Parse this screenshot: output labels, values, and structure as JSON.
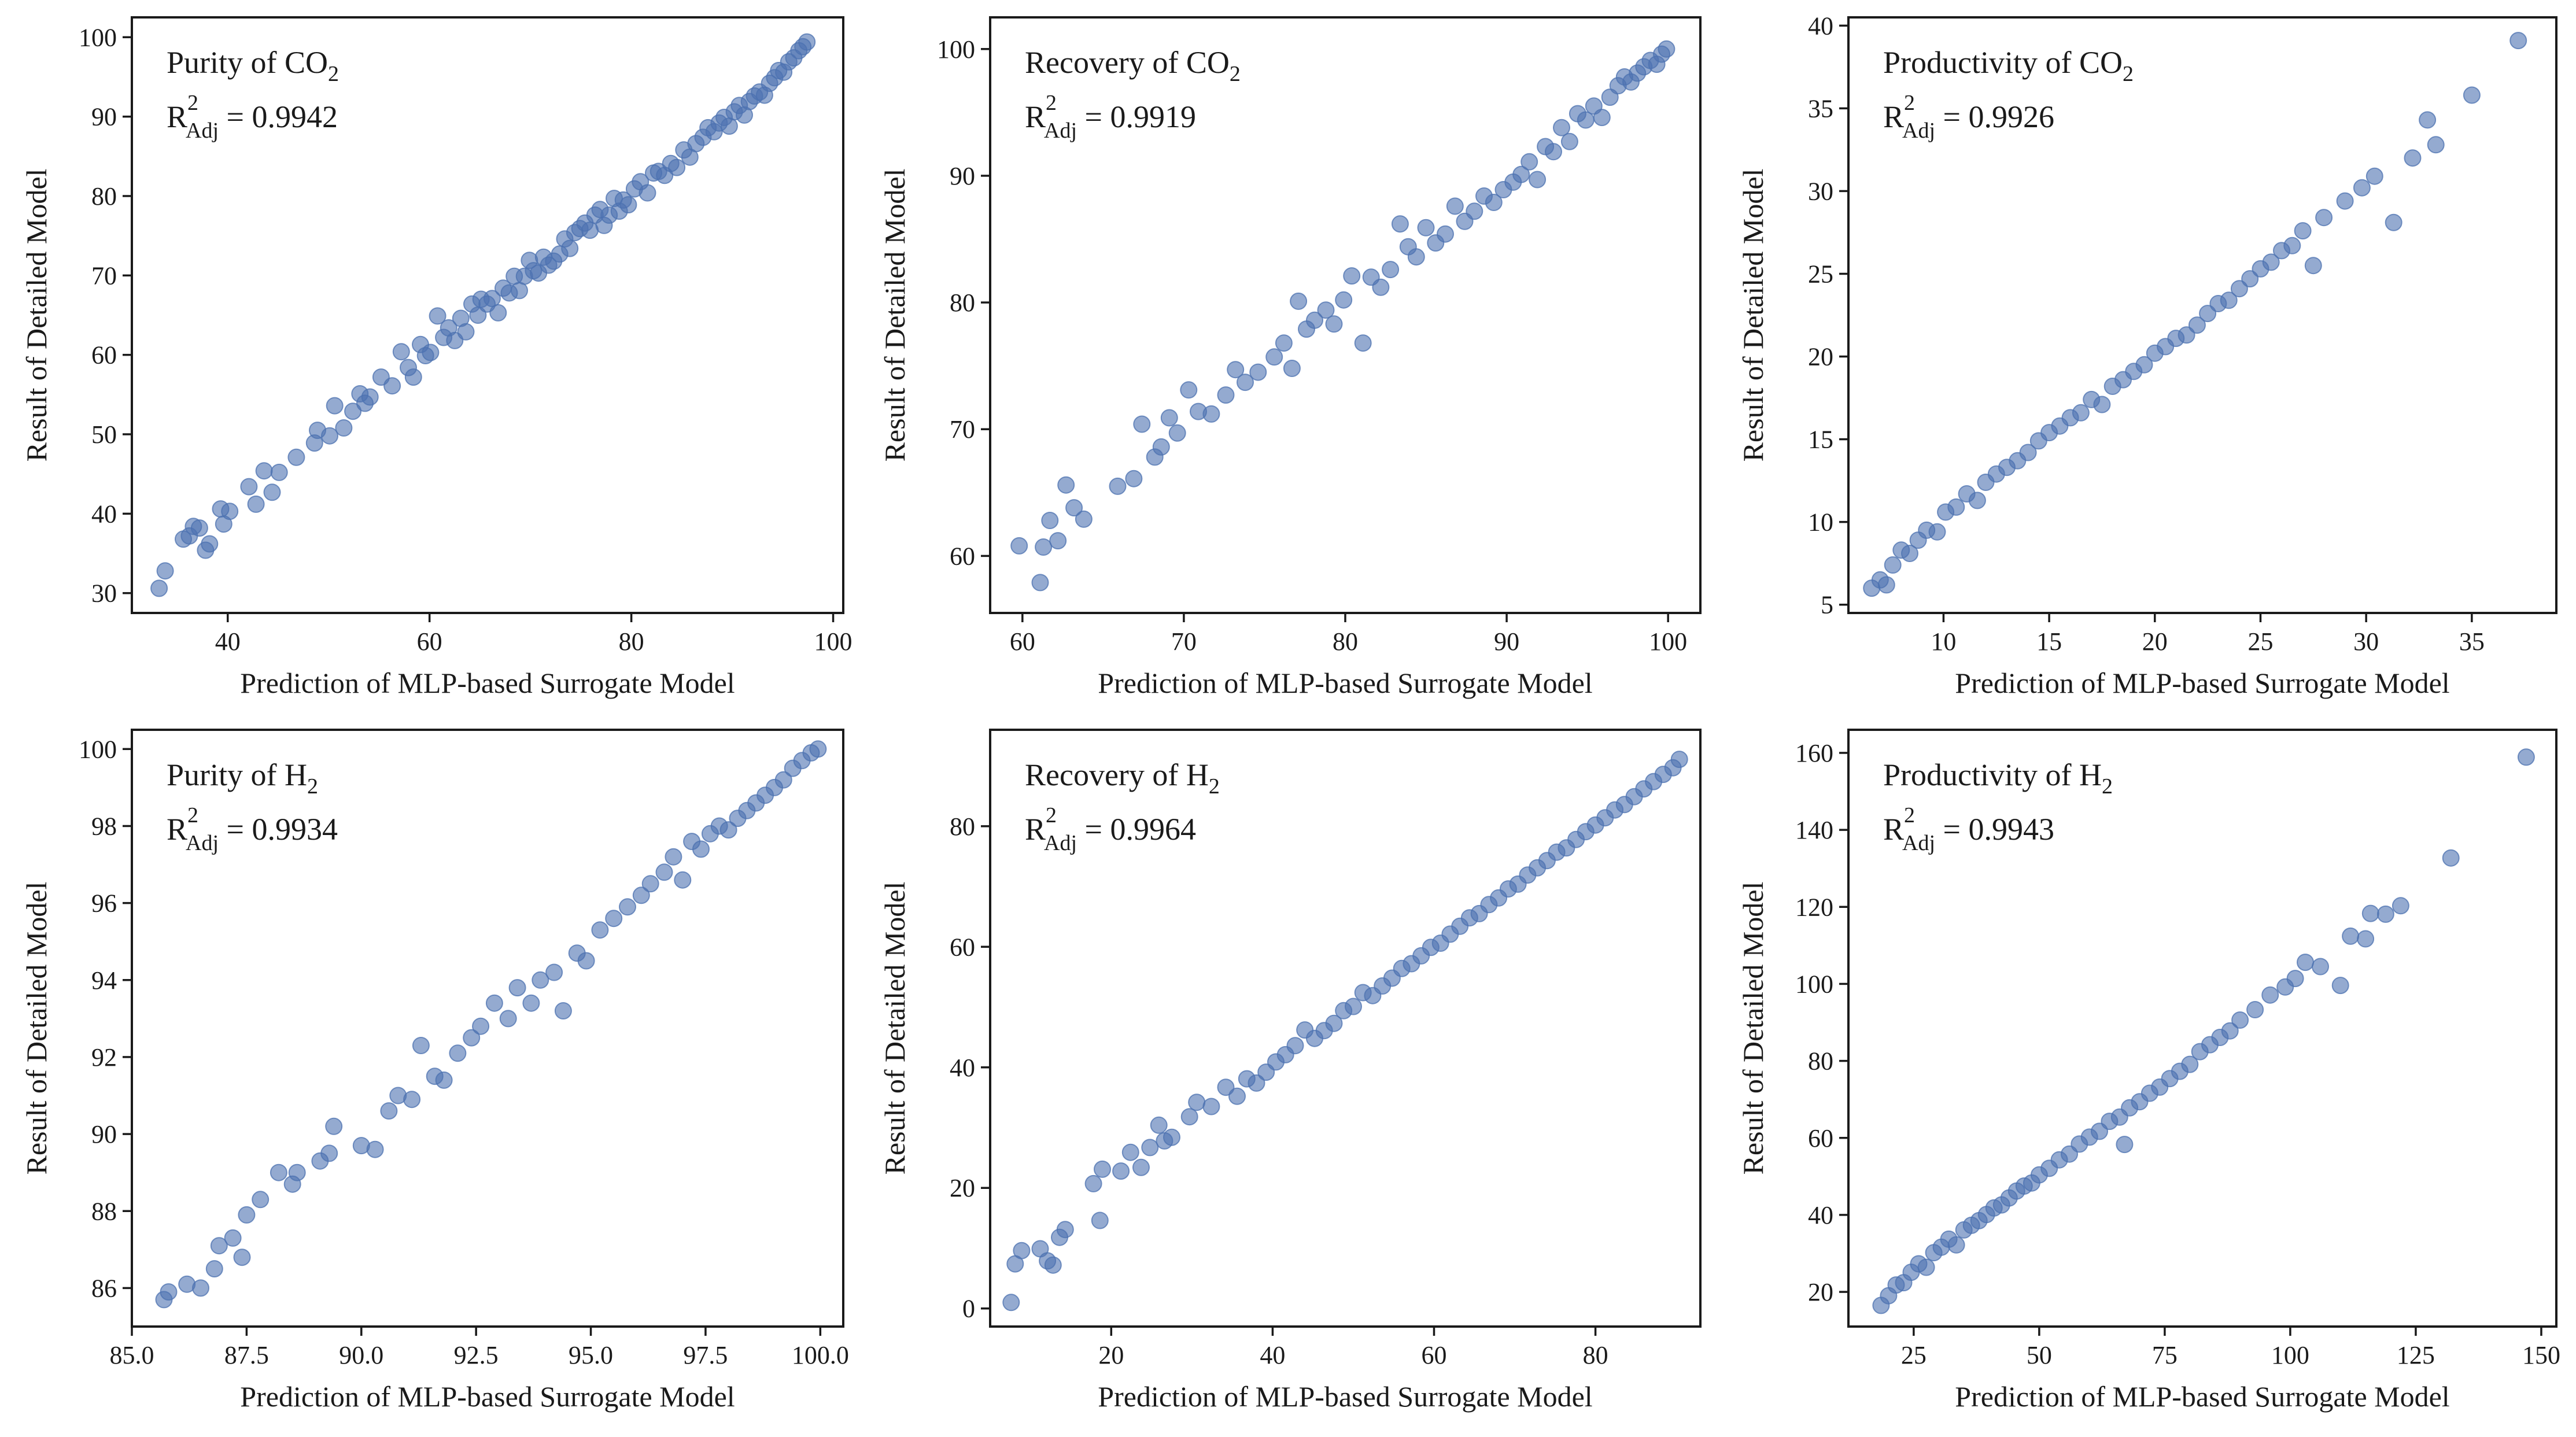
{
  "figure": {
    "marker_color": "#4c72b0"
  },
  "chart_data": [
    {
      "type": "scatter",
      "xlabel": "Prediction of MLP-based Surrogate Model",
      "ylabel": "Result of Detailed Model",
      "annotation": {
        "title": "Purity of CO",
        "title_sub": "2",
        "r2_label": "R",
        "r2_sup": "2",
        "r2_sub": "Adj",
        "r2_value": " = 0.9942"
      },
      "xlim": [
        30.5,
        101
      ],
      "ylim": [
        27.5,
        102.5
      ],
      "xticks": [
        40,
        60,
        80,
        100
      ],
      "xtick_labels": [
        "40",
        "60",
        "80",
        "100"
      ],
      "yticks": [
        30,
        40,
        50,
        60,
        70,
        80,
        90,
        100
      ],
      "ytick_labels": [
        "30",
        "40",
        "50",
        "60",
        "70",
        "80",
        "90",
        "100"
      ],
      "points": {
        "x": [
          33.2,
          33.8,
          35.6,
          36.2,
          36.6,
          37.2,
          37.8,
          38.2,
          39.3,
          39.6,
          40.2,
          42.1,
          42.8,
          43.6,
          44.4,
          45.1,
          46.8,
          48.6,
          48.9,
          50.1,
          50.6,
          51.5,
          52.4,
          53.1,
          53.6,
          54.1,
          55.2,
          56.3,
          57.2,
          57.9,
          58.4,
          59.1,
          59.6,
          60.1,
          60.8,
          61.4,
          61.9,
          62.5,
          63.1,
          63.6,
          64.2,
          64.8,
          65.1,
          65.7,
          66.2,
          66.8,
          67.3,
          67.9,
          68.4,
          68.9,
          69.4,
          69.9,
          70.3,
          70.8,
          71.3,
          71.8,
          72.3,
          72.9,
          73.4,
          73.9,
          74.4,
          74.9,
          75.4,
          75.9,
          76.4,
          76.9,
          77.3,
          77.8,
          78.3,
          78.8,
          79.2,
          79.7,
          80.3,
          80.9,
          81.6,
          82.2,
          82.7,
          83.3,
          83.9,
          84.5,
          85.2,
          85.8,
          86.4,
          87.1,
          87.6,
          88.2,
          88.7,
          89.2,
          89.7,
          90.2,
          90.7,
          91.2,
          91.7,
          92.2,
          92.7,
          93.2,
          93.7,
          94.2,
          94.6,
          95.1,
          95.6,
          96.1,
          96.6,
          97.0,
          97.4
        ],
        "y": [
          30.6,
          32.8,
          36.8,
          37.2,
          38.4,
          38.2,
          35.4,
          36.2,
          40.6,
          38.7,
          40.3,
          43.4,
          41.2,
          45.4,
          42.7,
          45.2,
          47.1,
          48.9,
          50.5,
          49.8,
          53.6,
          50.8,
          52.9,
          55.1,
          53.9,
          54.7,
          57.2,
          56.1,
          60.4,
          58.4,
          57.2,
          61.3,
          59.9,
          60.3,
          64.9,
          62.2,
          63.4,
          61.8,
          64.6,
          62.9,
          66.4,
          65.0,
          67.0,
          66.4,
          67.1,
          65.3,
          68.4,
          67.8,
          69.9,
          68.1,
          69.9,
          71.9,
          70.6,
          70.3,
          72.3,
          71.3,
          71.8,
          72.7,
          74.6,
          73.4,
          75.4,
          75.9,
          76.6,
          75.7,
          77.6,
          78.3,
          76.3,
          77.6,
          79.7,
          78.1,
          79.5,
          78.9,
          80.9,
          81.8,
          80.4,
          82.9,
          83.1,
          82.6,
          84.1,
          83.6,
          85.8,
          84.9,
          86.6,
          87.4,
          88.6,
          88.1,
          89.2,
          89.9,
          88.8,
          90.6,
          91.4,
          90.2,
          91.9,
          92.6,
          93.1,
          92.7,
          94.2,
          94.9,
          95.8,
          95.6,
          96.9,
          97.4,
          98.3,
          98.8,
          99.4
        ]
      }
    },
    {
      "type": "scatter",
      "xlabel": "Prediction of MLP-based Surrogate Model",
      "ylabel": "Result of Detailed Model",
      "annotation": {
        "title": "Recovery of CO",
        "title_sub": "2",
        "r2_label": "R",
        "r2_sup": "2",
        "r2_sub": "Adj",
        "r2_value": " = 0.9919"
      },
      "xlim": [
        58,
        102
      ],
      "ylim": [
        55.5,
        102.5
      ],
      "xticks": [
        60,
        70,
        80,
        90,
        100
      ],
      "xtick_labels": [
        "60",
        "70",
        "80",
        "90",
        "100"
      ],
      "yticks": [
        60,
        70,
        80,
        90,
        100
      ],
      "ytick_labels": [
        "60",
        "70",
        "80",
        "90",
        "100"
      ],
      "points": {
        "x": [
          59.8,
          61.1,
          61.3,
          61.7,
          62.2,
          62.7,
          63.2,
          63.8,
          65.9,
          66.9,
          67.4,
          68.2,
          68.6,
          69.1,
          69.6,
          70.3,
          70.9,
          71.7,
          72.6,
          73.2,
          73.8,
          74.6,
          75.6,
          76.2,
          76.7,
          77.1,
          77.6,
          78.1,
          78.8,
          79.3,
          79.9,
          80.4,
          81.1,
          81.6,
          82.2,
          82.8,
          83.4,
          83.9,
          84.4,
          85.0,
          85.6,
          86.2,
          86.8,
          87.4,
          88.0,
          88.6,
          89.2,
          89.8,
          90.4,
          90.9,
          91.4,
          91.9,
          92.4,
          92.9,
          93.4,
          93.9,
          94.4,
          94.9,
          95.4,
          95.9,
          96.4,
          96.9,
          97.3,
          97.7,
          98.1,
          98.5,
          98.9,
          99.3,
          99.6,
          99.9
        ],
        "y": [
          60.8,
          57.9,
          60.7,
          62.8,
          61.2,
          65.6,
          63.8,
          62.9,
          65.5,
          66.1,
          70.4,
          67.8,
          68.6,
          70.9,
          69.7,
          73.1,
          71.4,
          71.2,
          72.7,
          74.7,
          73.7,
          74.5,
          75.7,
          76.8,
          74.8,
          80.1,
          77.9,
          78.6,
          79.4,
          78.3,
          80.2,
          82.1,
          76.8,
          82.0,
          81.2,
          82.6,
          86.2,
          84.4,
          83.6,
          85.9,
          84.7,
          85.4,
          87.6,
          86.4,
          87.2,
          88.4,
          87.9,
          88.9,
          89.5,
          90.1,
          91.1,
          89.7,
          92.3,
          91.9,
          93.8,
          92.7,
          94.9,
          94.4,
          95.5,
          94.6,
          96.2,
          97.1,
          97.8,
          97.4,
          98.1,
          98.6,
          99.1,
          98.8,
          99.6,
          100.0
        ]
      }
    },
    {
      "type": "scatter",
      "xlabel": "Prediction of MLP-based Surrogate Model",
      "ylabel": "Result of Detailed Model",
      "annotation": {
        "title": "Productivity of CO",
        "title_sub": "2",
        "r2_label": "R",
        "r2_sup": "2",
        "r2_sub": "Adj",
        "r2_value": " = 0.9926"
      },
      "xlim": [
        5.5,
        39
      ],
      "ylim": [
        4.5,
        40.5
      ],
      "xticks": [
        10,
        15,
        20,
        25,
        30,
        35
      ],
      "xtick_labels": [
        "10",
        "15",
        "20",
        "25",
        "30",
        "35"
      ],
      "yticks": [
        5,
        10,
        15,
        20,
        25,
        30,
        35,
        40
      ],
      "ytick_labels": [
        "5",
        "10",
        "15",
        "20",
        "25",
        "30",
        "35",
        "40"
      ],
      "points": {
        "x": [
          6.6,
          7.0,
          7.3,
          7.6,
          8.0,
          8.4,
          8.8,
          9.2,
          9.7,
          10.1,
          10.6,
          11.1,
          11.6,
          12.0,
          12.5,
          13.0,
          13.5,
          14.0,
          14.5,
          15.0,
          15.5,
          16.0,
          16.5,
          17.0,
          17.5,
          18.0,
          18.5,
          19.0,
          19.5,
          20.0,
          20.5,
          21.0,
          21.5,
          22.0,
          22.5,
          23.0,
          23.5,
          24.0,
          24.5,
          25.0,
          25.5,
          26.0,
          26.5,
          27.0,
          27.5,
          28.0,
          29.0,
          29.8,
          30.4,
          31.3,
          32.2,
          32.9,
          33.3,
          35.0,
          37.2
        ],
        "y": [
          6.0,
          6.5,
          6.2,
          7.4,
          8.3,
          8.1,
          8.9,
          9.5,
          9.4,
          10.6,
          10.9,
          11.7,
          11.3,
          12.4,
          12.9,
          13.3,
          13.7,
          14.2,
          14.9,
          15.4,
          15.8,
          16.3,
          16.6,
          17.4,
          17.1,
          18.2,
          18.6,
          19.1,
          19.5,
          20.2,
          20.6,
          21.1,
          21.3,
          21.9,
          22.6,
          23.2,
          23.4,
          24.1,
          24.7,
          25.3,
          25.7,
          26.4,
          26.7,
          27.6,
          25.5,
          28.4,
          29.4,
          30.2,
          30.9,
          28.1,
          32.0,
          34.3,
          32.8,
          35.8,
          39.1
        ]
      }
    },
    {
      "type": "scatter",
      "xlabel": "Prediction of MLP-based Surrogate Model",
      "ylabel": "Result of Detailed Model",
      "annotation": {
        "title": "Purity of H",
        "title_sub": "2",
        "r2_label": "R",
        "r2_sup": "2",
        "r2_sub": "Adj",
        "r2_value": " = 0.9934"
      },
      "xlim": [
        85,
        100.5
      ],
      "ylim": [
        85.0,
        100.5
      ],
      "xticks": [
        85.0,
        87.5,
        90.0,
        92.5,
        95.0,
        97.5,
        100.0
      ],
      "xtick_labels": [
        "85.0",
        "87.5",
        "90.0",
        "92.5",
        "95.0",
        "97.5",
        "100.0"
      ],
      "yticks": [
        86,
        88,
        90,
        92,
        94,
        96,
        98,
        100
      ],
      "ytick_labels": [
        "86",
        "88",
        "90",
        "92",
        "94",
        "96",
        "98",
        "100"
      ],
      "points": {
        "x": [
          85.7,
          85.8,
          86.2,
          86.5,
          86.8,
          86.9,
          87.2,
          87.4,
          87.5,
          87.8,
          88.2,
          88.5,
          88.6,
          89.1,
          89.3,
          89.4,
          90.0,
          90.3,
          90.6,
          90.8,
          91.1,
          91.3,
          91.6,
          91.8,
          92.1,
          92.4,
          92.6,
          92.9,
          93.2,
          93.4,
          93.7,
          93.9,
          94.2,
          94.4,
          94.7,
          94.9,
          95.2,
          95.5,
          95.8,
          96.1,
          96.3,
          96.6,
          96.8,
          97.0,
          97.2,
          97.4,
          97.6,
          97.8,
          98.0,
          98.2,
          98.4,
          98.6,
          98.8,
          99.0,
          99.2,
          99.4,
          99.6,
          99.8,
          99.95
        ],
        "y": [
          85.7,
          85.9,
          86.1,
          86.0,
          86.5,
          87.1,
          87.3,
          86.8,
          87.9,
          88.3,
          89.0,
          88.7,
          89.0,
          89.3,
          89.5,
          90.2,
          89.7,
          89.6,
          90.6,
          91.0,
          90.9,
          92.3,
          91.5,
          91.4,
          92.1,
          92.5,
          92.8,
          93.4,
          93.0,
          93.8,
          93.4,
          94.0,
          94.2,
          93.2,
          94.7,
          94.5,
          95.3,
          95.6,
          95.9,
          96.2,
          96.5,
          96.8,
          97.2,
          96.6,
          97.6,
          97.4,
          97.8,
          98.0,
          97.9,
          98.2,
          98.4,
          98.6,
          98.8,
          99.0,
          99.2,
          99.5,
          99.7,
          99.9,
          100.0
        ]
      }
    },
    {
      "type": "scatter",
      "xlabel": "Prediction of MLP-based Surrogate Model",
      "ylabel": "Result of Detailed Model",
      "annotation": {
        "title": "Recovery of H",
        "title_sub": "2",
        "r2_label": "R",
        "r2_sup": "2",
        "r2_sub": "Adj",
        "r2_value": " = 0.9964"
      },
      "xlim": [
        5,
        93
      ],
      "ylim": [
        -3,
        96
      ],
      "xticks": [
        20,
        40,
        60,
        80
      ],
      "xtick_labels": [
        "20",
        "40",
        "60",
        "80"
      ],
      "yticks": [
        0,
        20,
        40,
        60,
        80
      ],
      "ytick_labels": [
        "0",
        "20",
        "40",
        "60",
        "80"
      ],
      "points": {
        "x": [
          7.6,
          8.1,
          8.9,
          11.2,
          12.1,
          12.8,
          13.6,
          14.3,
          17.8,
          18.6,
          18.9,
          21.2,
          22.4,
          23.7,
          24.8,
          25.9,
          26.6,
          27.5,
          29.7,
          30.6,
          32.4,
          34.2,
          35.6,
          36.8,
          38.0,
          39.2,
          40.4,
          41.6,
          42.8,
          44.0,
          45.2,
          46.4,
          47.6,
          48.8,
          50.0,
          51.2,
          52.4,
          53.6,
          54.8,
          56.0,
          57.2,
          58.4,
          59.6,
          60.8,
          62.0,
          63.2,
          64.4,
          65.6,
          66.8,
          68.0,
          69.2,
          70.4,
          71.6,
          72.8,
          74.0,
          75.2,
          76.4,
          77.6,
          78.8,
          80.0,
          81.2,
          82.4,
          83.6,
          84.8,
          86.0,
          87.2,
          88.4,
          89.6,
          90.4
        ],
        "y": [
          1.0,
          7.4,
          9.6,
          9.9,
          7.9,
          7.2,
          11.8,
          13.1,
          20.7,
          14.6,
          23.1,
          22.8,
          25.9,
          23.4,
          26.7,
          30.4,
          27.8,
          28.4,
          31.8,
          34.2,
          33.5,
          36.7,
          35.2,
          38.1,
          37.4,
          39.2,
          40.9,
          42.1,
          43.6,
          46.2,
          44.8,
          46.1,
          47.3,
          49.4,
          50.1,
          52.4,
          51.9,
          53.5,
          54.8,
          56.4,
          57.2,
          58.5,
          59.9,
          60.6,
          62.1,
          63.4,
          64.8,
          65.5,
          67.0,
          68.1,
          69.6,
          70.4,
          71.9,
          73.1,
          74.3,
          75.7,
          76.4,
          77.8,
          79.1,
          80.2,
          81.4,
          82.7,
          83.6,
          84.9,
          86.2,
          87.4,
          88.6,
          89.7,
          91.1
        ]
      }
    },
    {
      "type": "scatter",
      "xlabel": "Prediction of MLP-based Surrogate Model",
      "ylabel": "Result of Detailed Model",
      "annotation": {
        "title": "Productivity of H",
        "title_sub": "2",
        "r2_label": "R",
        "r2_sup": "2",
        "r2_sub": "Adj",
        "r2_value": " = 0.9943"
      },
      "xlim": [
        12,
        153
      ],
      "ylim": [
        11,
        166
      ],
      "xticks": [
        25,
        50,
        75,
        100,
        125,
        150
      ],
      "xtick_labels": [
        "25",
        "50",
        "75",
        "100",
        "125",
        "150"
      ],
      "yticks": [
        20,
        40,
        60,
        80,
        100,
        120,
        140,
        160
      ],
      "ytick_labels": [
        "20",
        "40",
        "60",
        "80",
        "100",
        "120",
        "140",
        "160"
      ],
      "points": {
        "x": [
          18.5,
          20.0,
          21.5,
          23.0,
          24.5,
          26.0,
          27.5,
          29.0,
          30.5,
          32.0,
          33.5,
          35.0,
          36.5,
          38.0,
          39.5,
          41.0,
          42.5,
          44.0,
          45.5,
          47.0,
          48.5,
          50.0,
          52.0,
          54.0,
          56.0,
          58.0,
          60.0,
          62.0,
          64.0,
          66.0,
          67.0,
          68.0,
          70.0,
          72.0,
          74.0,
          76.0,
          78.0,
          80.0,
          82.0,
          84.0,
          86.0,
          88.0,
          90.0,
          93.0,
          96.0,
          99.0,
          101.0,
          103.0,
          106.0,
          110.0,
          112.0,
          115.0,
          116.0,
          119.0,
          122.0,
          132.0,
          147.0
        ],
        "y": [
          16.5,
          19.0,
          21.8,
          22.4,
          25.1,
          27.3,
          26.4,
          30.2,
          31.6,
          33.7,
          32.2,
          36.1,
          37.3,
          38.5,
          40.1,
          41.8,
          42.6,
          44.4,
          46.2,
          47.5,
          48.3,
          50.4,
          52.1,
          54.3,
          55.8,
          58.4,
          60.2,
          61.7,
          64.3,
          65.4,
          58.3,
          67.8,
          69.4,
          71.6,
          73.2,
          75.4,
          77.3,
          79.1,
          82.4,
          84.2,
          86.1,
          87.8,
          90.6,
          93.3,
          97.1,
          99.2,
          101.4,
          105.6,
          104.5,
          99.6,
          112.4,
          111.7,
          118.3,
          118.1,
          120.3,
          132.7,
          158.9
        ]
      }
    }
  ]
}
